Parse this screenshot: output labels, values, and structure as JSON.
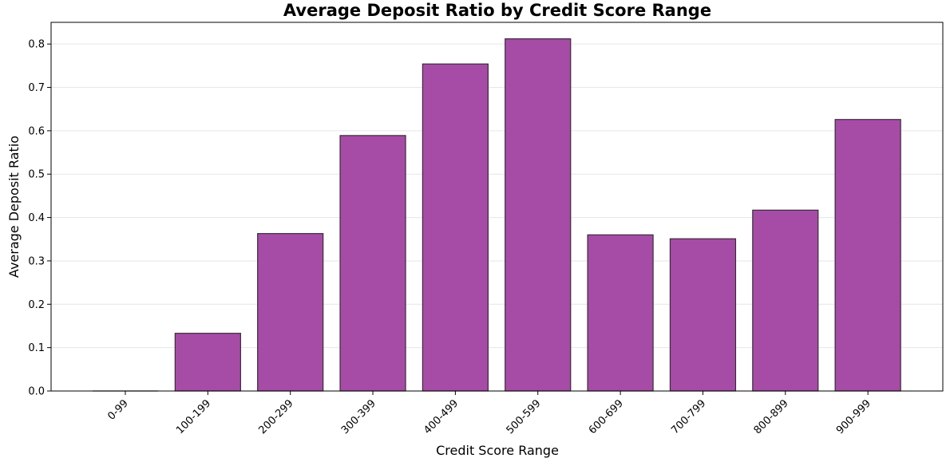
{
  "chart_data": {
    "type": "bar",
    "title": "Average Deposit Ratio by Credit Score Range",
    "xlabel": "Credit Score Range",
    "ylabel": "Average Deposit Ratio",
    "categories": [
      "0-99",
      "100-199",
      "200-299",
      "300-399",
      "400-499",
      "500-599",
      "600-699",
      "700-799",
      "800-899",
      "900-999"
    ],
    "values": [
      0.0,
      0.133,
      0.363,
      0.589,
      0.754,
      0.812,
      0.36,
      0.351,
      0.417,
      0.626
    ],
    "ylim": [
      0,
      0.85
    ],
    "yticks": [
      0.0,
      0.1,
      0.2,
      0.3,
      0.4,
      0.5,
      0.6,
      0.7,
      0.8
    ],
    "ytick_labels": [
      "0.0",
      "0.1",
      "0.2",
      "0.3",
      "0.4",
      "0.5",
      "0.6",
      "0.7",
      "0.8"
    ],
    "grid": true,
    "bar_color": "#a64ca6",
    "bar_edge_color": "#3a2a3a"
  }
}
